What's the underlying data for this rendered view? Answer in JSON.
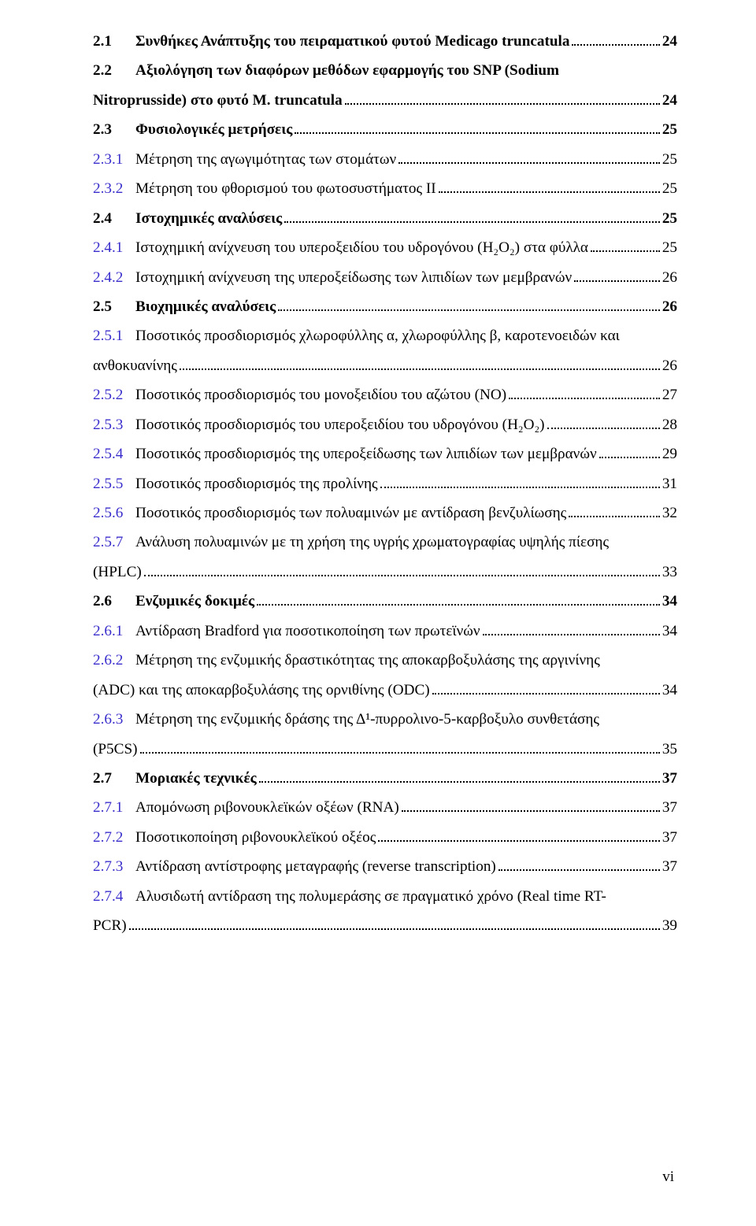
{
  "footer": "vi",
  "toc": [
    {
      "level": 1,
      "num": "2.1",
      "title_parts": [
        "Συνθήκες Ανάπτυξης του πειραματικού φυτού Medicago truncatula"
      ],
      "page": "24",
      "link": false
    },
    {
      "level": 1,
      "num": "2.2",
      "title_parts": [
        "Αξιολόγηση των διαφόρων μεθόδων εφαρμογής του SNP (Sodium",
        "Nitroprusside) στο φυτό M. truncatula"
      ],
      "page": "24",
      "link": false
    },
    {
      "level": 1,
      "num": "2.3",
      "title_parts": [
        "Φυσιολογικές μετρήσεις"
      ],
      "page": "25",
      "link": false
    },
    {
      "level": 2,
      "num": "2.3.1",
      "title_parts": [
        "Μέτρηση της αγωγιμότητας των στομάτων"
      ],
      "page": "25",
      "link": true
    },
    {
      "level": 2,
      "num": "2.3.2",
      "title_parts": [
        "Μέτρηση του φθορισμού του φωτοσυστήματος ΙΙ"
      ],
      "page": "25",
      "link": true
    },
    {
      "level": 1,
      "num": "2.4",
      "title_parts": [
        "Ιστοχημικές αναλύσεις"
      ],
      "page": "25",
      "link": false
    },
    {
      "level": 2,
      "num": "2.4.1",
      "title_parts": [
        "Ιστοχημική ανίχνευση του υπεροξειδίου του υδρογόνου (H₂O₂) στα φύλλα"
      ],
      "page": "25",
      "link": true
    },
    {
      "level": 2,
      "num": "2.4.2",
      "title_parts": [
        "Ιστοχημική ανίχνευση της υπεροξείδωσης των λιπιδίων των μεμβρανών"
      ],
      "page": "26",
      "link": true
    },
    {
      "level": 1,
      "num": "2.5",
      "title_parts": [
        "Βιοχημικές αναλύσεις"
      ],
      "page": "26",
      "link": false
    },
    {
      "level": 2,
      "num": "2.5.1",
      "title_parts": [
        "Ποσοτικός προσδιορισμός χλωροφύλλης α, χλωροφύλλης β, καροτενοειδών και",
        "ανθοκυανίνης"
      ],
      "page": "26",
      "link": true
    },
    {
      "level": 2,
      "num": "2.5.2",
      "title_parts": [
        "Ποσοτικός προσδιορισμός του μονοξειδίου του αζώτου (ΝΟ)"
      ],
      "page": "27",
      "link": true
    },
    {
      "level": 2,
      "num": "2.5.3",
      "title_parts": [
        "Ποσοτικός προσδιορισμός του υπεροξειδίου του υδρογόνου (H₂O₂)"
      ],
      "page": "28",
      "link": true
    },
    {
      "level": 2,
      "num": "2.5.4",
      "title_parts": [
        "Ποσοτικός προσδιορισμός της υπεροξείδωσης των λιπιδίων των μεμβρανών"
      ],
      "page": "29",
      "link": true
    },
    {
      "level": 2,
      "num": "2.5.5",
      "title_parts": [
        "Ποσοτικός προσδιορισμός της προλίνης"
      ],
      "page": "31",
      "link": true
    },
    {
      "level": 2,
      "num": "2.5.6",
      "title_parts": [
        "Ποσοτικός προσδιορισμός των πολυαμινών με αντίδραση βενζυλίωσης"
      ],
      "page": "32",
      "link": true
    },
    {
      "level": 2,
      "num": "2.5.7",
      "title_parts": [
        "Ανάλυση πολυαμινών με τη χρήση της υγρής χρωματογραφίας υψηλής πίεσης",
        "(HPLC)"
      ],
      "page": "33",
      "link": true
    },
    {
      "level": 1,
      "num": "2.6",
      "title_parts": [
        "Ενζυμικές δοκιμές"
      ],
      "page": "34",
      "link": false
    },
    {
      "level": 2,
      "num": "2.6.1",
      "title_parts": [
        "Αντίδραση Bradford για ποσοτικοποίηση των πρωτεϊνών"
      ],
      "page": "34",
      "link": true
    },
    {
      "level": 2,
      "num": "2.6.2",
      "title_parts": [
        "Μέτρηση της ενζυμικής δραστικότητας της αποκαρβοξυλάσης της αργινίνης",
        "(ADC) και της αποκαρβοξυλάσης της ορνιθίνης (ODC)"
      ],
      "page": "34",
      "link": true
    },
    {
      "level": 2,
      "num": "2.6.3",
      "title_parts": [
        "Μέτρηση της ενζυμικής δράσης της Δ¹-πυρρολινο-5-καρβοξυλο συνθετάσης",
        "(P5CS)"
      ],
      "page": "35",
      "link": true
    },
    {
      "level": 1,
      "num": "2.7",
      "title_parts": [
        "Μοριακές τεχνικές"
      ],
      "page": "37",
      "link": false
    },
    {
      "level": 2,
      "num": "2.7.1",
      "title_parts": [
        "Απομόνωση ριβονουκλεϊκών οξέων (RNA)"
      ],
      "page": "37",
      "link": true
    },
    {
      "level": 2,
      "num": "2.7.2",
      "title_parts": [
        "Ποσοτικοποίηση ριβονουκλεϊκού οξέος"
      ],
      "page": "37",
      "link": true
    },
    {
      "level": 2,
      "num": "2.7.3",
      "title_parts": [
        "Αντίδραση αντίστροφης μεταγραφής (reverse transcription)"
      ],
      "page": "37",
      "link": true
    },
    {
      "level": 2,
      "num": "2.7.4",
      "title_parts": [
        "Αλυσιδωτή αντίδραση της πολυμεράσης σε πραγματικό χρόνο (Real time  RT-",
        "PCR)"
      ],
      "page": "39",
      "link": true
    }
  ]
}
